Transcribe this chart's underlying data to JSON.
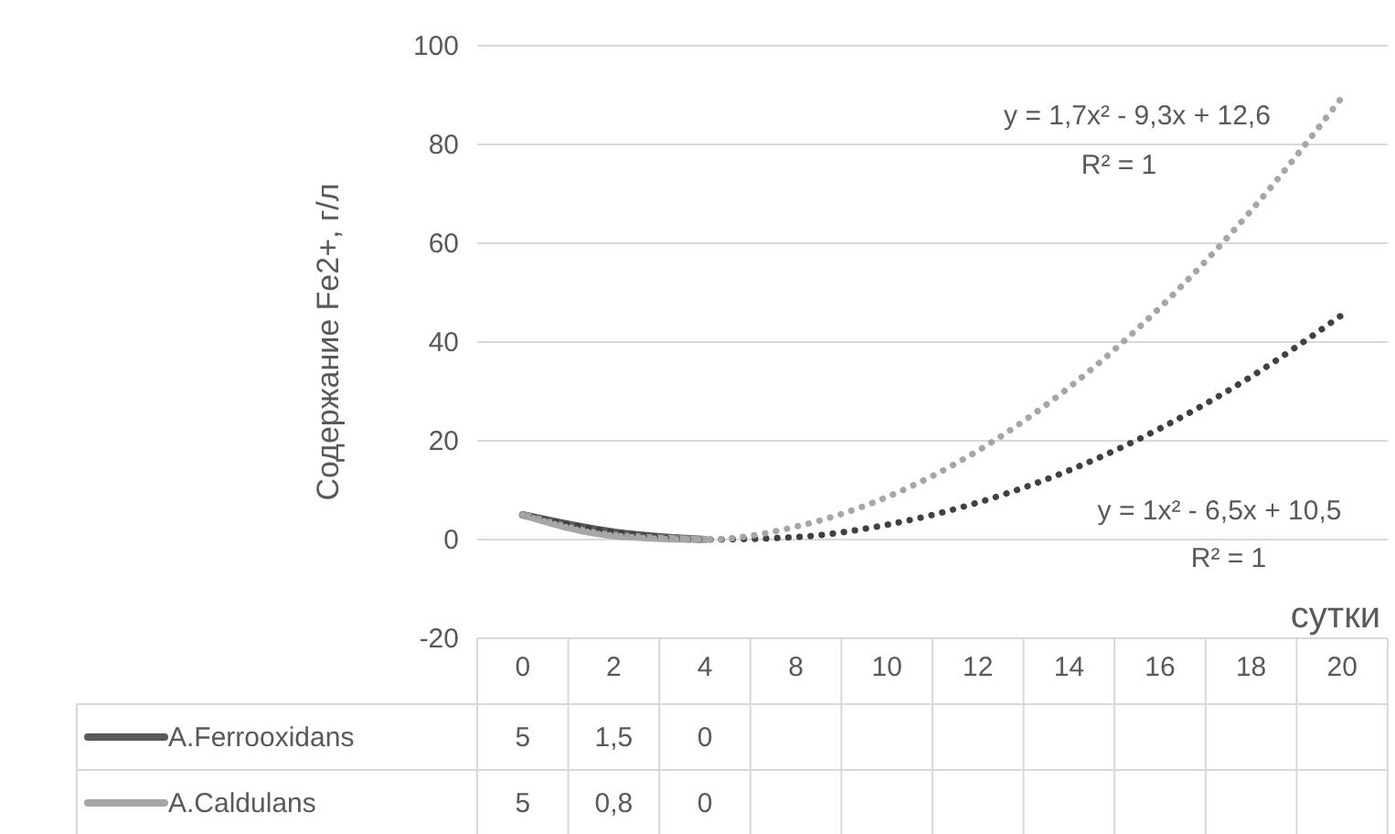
{
  "chart_data": {
    "type": "line",
    "ylabel": "Содержание Fe2+,  г/л",
    "xlabel": "сутки",
    "categories": [
      "0",
      "2",
      "4",
      "8",
      "10",
      "12",
      "14",
      "16",
      "18",
      "20"
    ],
    "series": [
      {
        "name": "A.Ferrooxidans",
        "color": "#595959",
        "values": [
          5,
          1.5,
          0,
          null,
          null,
          null,
          null,
          null,
          null,
          null
        ],
        "value_labels": [
          "5",
          "1,5",
          "0",
          null,
          null,
          null,
          null,
          null,
          null,
          null
        ]
      },
      {
        "name": "A.Caldulans",
        "color": "#a6a6a6",
        "values": [
          5,
          0.8,
          0,
          null,
          null,
          null,
          null,
          null,
          null,
          null
        ],
        "value_labels": [
          "5",
          "0,8",
          "0",
          null,
          null,
          null,
          null,
          null,
          null,
          null
        ]
      },
      {
        "type": "line",
        "color": "#404040",
        "line_style": "dotted",
        "x": [
          "0",
          "2",
          "4",
          "8",
          "10",
          "12",
          "14",
          "16",
          "18",
          "20"
        ],
        "values": [
          5,
          1.5,
          0,
          0.5,
          3,
          7.5,
          14,
          22.5,
          33,
          45.5
        ]
      },
      {
        "type": "line",
        "color": "#a6a6a6",
        "line_style": "dotted",
        "x": [
          "0",
          "2",
          "4",
          "8",
          "10",
          "12",
          "14",
          "16",
          "18",
          "20"
        ],
        "values": [
          5,
          0.8,
          0,
          2.6,
          8.6,
          18,
          30.8,
          47,
          66.6,
          89.6
        ]
      }
    ],
    "ylim": [
      -20,
      100
    ],
    "yticks": [
      -20,
      0,
      20,
      40,
      60,
      80,
      100
    ],
    "grid": "y",
    "legend": "bottom",
    "line_style": "solid",
    "annotations": [
      "y = 1,7x² - 9,3x + 12,6",
      "R² = 1",
      "y = 1x² - 6,5x + 10,5",
      "R² = 1"
    ]
  }
}
